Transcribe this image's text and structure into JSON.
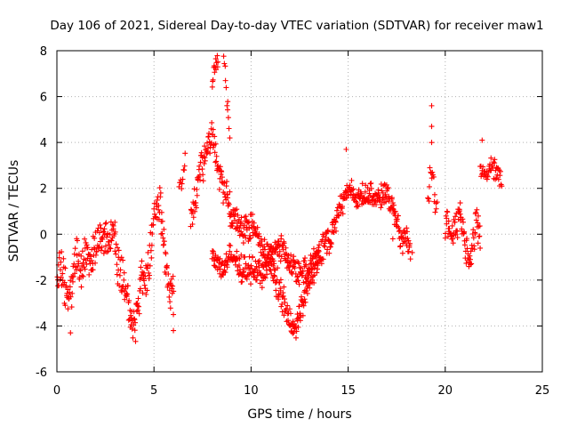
{
  "chart_data": {
    "type": "scatter",
    "title": "Day 106 of 2021, Sidereal Day-to-day VTEC variation (SDTVAR) for receiver maw1",
    "xlabel": "GPS time / hours",
    "ylabel": "SDTVAR / TECUs",
    "xlim": [
      0,
      25
    ],
    "ylim": [
      -6,
      8
    ],
    "xticks": [
      0,
      5,
      10,
      15,
      20,
      25
    ],
    "yticks": [
      -6,
      -4,
      -2,
      0,
      2,
      4,
      6,
      8
    ],
    "grid": true,
    "marker": "+",
    "series": [
      {
        "name": "SDTVAR",
        "color": "#ff0000",
        "segments": [
          {
            "x_start": 0.0,
            "x_end": 6.0,
            "step": 0.02,
            "anchors": [
              [
                0.0,
                -1.8
              ],
              [
                0.2,
                -1.2
              ],
              [
                0.4,
                -2.3
              ],
              [
                0.6,
                -3.0
              ],
              [
                0.8,
                -2.0
              ],
              [
                1.0,
                -0.8
              ],
              [
                1.3,
                -1.5
              ],
              [
                1.6,
                -0.7
              ],
              [
                1.8,
                -1.5
              ],
              [
                2.0,
                -0.5
              ],
              [
                2.3,
                0.2
              ],
              [
                2.6,
                -0.5
              ],
              [
                2.9,
                0.5
              ],
              [
                3.1,
                -1.0
              ],
              [
                3.3,
                -1.8
              ],
              [
                3.6,
                -2.5
              ],
              [
                3.8,
                -3.5
              ],
              [
                4.0,
                -4.0
              ],
              [
                4.2,
                -3.0
              ],
              [
                4.4,
                -1.5
              ],
              [
                4.6,
                -2.2
              ],
              [
                4.8,
                -1.0
              ],
              [
                5.0,
                1.0
              ],
              [
                5.2,
                1.5
              ],
              [
                5.4,
                0.5
              ],
              [
                5.6,
                -1.0
              ],
              [
                5.8,
                -2.5
              ],
              [
                6.0,
                -2.0
              ]
            ],
            "amp": 1.1
          },
          {
            "x_start": 6.3,
            "x_end": 6.6,
            "step": 0.03,
            "anchors": [
              [
                6.3,
                2.0
              ],
              [
                6.6,
                3.0
              ]
            ],
            "amp": 0.6
          },
          {
            "x_start": 6.9,
            "x_end": 9.0,
            "step": 0.02,
            "anchors": [
              [
                6.9,
                0.5
              ],
              [
                7.3,
                2.5
              ],
              [
                7.7,
                3.5
              ],
              [
                8.0,
                4.5
              ],
              [
                8.2,
                3.5
              ],
              [
                8.4,
                2.5
              ],
              [
                8.6,
                2.0
              ],
              [
                8.8,
                1.5
              ],
              [
                9.0,
                0.5
              ]
            ],
            "amp": 0.9
          },
          {
            "x_start": 8.0,
            "x_end": 8.3,
            "step": 0.025,
            "anchors": [
              [
                8.0,
                6.5
              ],
              [
                8.3,
                7.8
              ]
            ],
            "amp": 0.5
          },
          {
            "x_start": 8.6,
            "x_end": 8.9,
            "step": 0.03,
            "anchors": [
              [
                8.6,
                7.5
              ],
              [
                8.9,
                4.5
              ]
            ],
            "amp": 0.7
          },
          {
            "x_start": 8.0,
            "x_end": 13.5,
            "step": 0.02,
            "anchors": [
              [
                8.0,
                -1.0
              ],
              [
                8.5,
                -1.5
              ],
              [
                9.0,
                -1.0
              ],
              [
                9.5,
                -1.5
              ],
              [
                10.0,
                -1.5
              ],
              [
                10.5,
                -1.8
              ],
              [
                11.0,
                -1.0
              ],
              [
                11.5,
                -0.5
              ],
              [
                12.0,
                -1.2
              ],
              [
                12.5,
                -1.8
              ],
              [
                13.0,
                -1.5
              ],
              [
                13.5,
                -0.8
              ]
            ],
            "amp": 0.7
          },
          {
            "x_start": 9.0,
            "x_end": 14.0,
            "step": 0.02,
            "anchors": [
              [
                9.0,
                0.8
              ],
              [
                9.5,
                0.2
              ],
              [
                10.0,
                0.5
              ],
              [
                10.5,
                -0.5
              ],
              [
                11.0,
                -1.2
              ],
              [
                11.5,
                -2.5
              ],
              [
                12.0,
                -3.8
              ],
              [
                12.3,
                -4.2
              ],
              [
                12.6,
                -3.0
              ],
              [
                13.0,
                -2.0
              ],
              [
                13.5,
                -1.0
              ],
              [
                14.0,
                0.0
              ]
            ],
            "amp": 0.8
          },
          {
            "x_start": 14.0,
            "x_end": 17.5,
            "step": 0.02,
            "anchors": [
              [
                14.0,
                -0.5
              ],
              [
                14.5,
                1.0
              ],
              [
                15.0,
                2.0
              ],
              [
                15.5,
                1.5
              ],
              [
                16.0,
                1.8
              ],
              [
                16.5,
                1.5
              ],
              [
                17.0,
                1.8
              ],
              [
                17.3,
                1.0
              ],
              [
                17.5,
                0.5
              ]
            ],
            "amp": 0.6
          },
          {
            "x_start": 17.5,
            "x_end": 18.2,
            "step": 0.02,
            "anchors": [
              [
                17.5,
                0.5
              ],
              [
                17.8,
                -0.5
              ],
              [
                18.0,
                0.0
              ],
              [
                18.2,
                -0.8
              ]
            ],
            "amp": 0.7
          },
          {
            "x_start": 19.1,
            "x_end": 19.6,
            "step": 0.03,
            "anchors": [
              [
                19.1,
                1.5
              ],
              [
                19.3,
                3.0
              ],
              [
                19.6,
                1.0
              ]
            ],
            "amp": 1.0
          },
          {
            "x_start": 20.0,
            "x_end": 21.8,
            "step": 0.02,
            "anchors": [
              [
                20.0,
                0.5
              ],
              [
                20.4,
                0.0
              ],
              [
                20.8,
                1.0
              ],
              [
                21.0,
                -0.5
              ],
              [
                21.3,
                -0.8
              ],
              [
                21.6,
                0.5
              ],
              [
                21.8,
                0.0
              ]
            ],
            "amp": 0.8
          },
          {
            "x_start": 21.8,
            "x_end": 22.9,
            "step": 0.025,
            "anchors": [
              [
                21.8,
                3.0
              ],
              [
                22.1,
                2.5
              ],
              [
                22.4,
                3.0
              ],
              [
                22.9,
                2.5
              ]
            ],
            "amp": 0.6
          }
        ],
        "isolated_points": [
          [
            0.7,
            -4.3
          ],
          [
            6.0,
            -4.2
          ],
          [
            6.0,
            -3.5
          ],
          [
            14.9,
            3.7
          ],
          [
            19.3,
            5.6
          ],
          [
            19.3,
            4.7
          ],
          [
            19.3,
            4.0
          ],
          [
            21.9,
            4.1
          ],
          [
            17.3,
            -0.2
          ],
          [
            18.3,
            -0.8
          ]
        ]
      }
    ]
  }
}
